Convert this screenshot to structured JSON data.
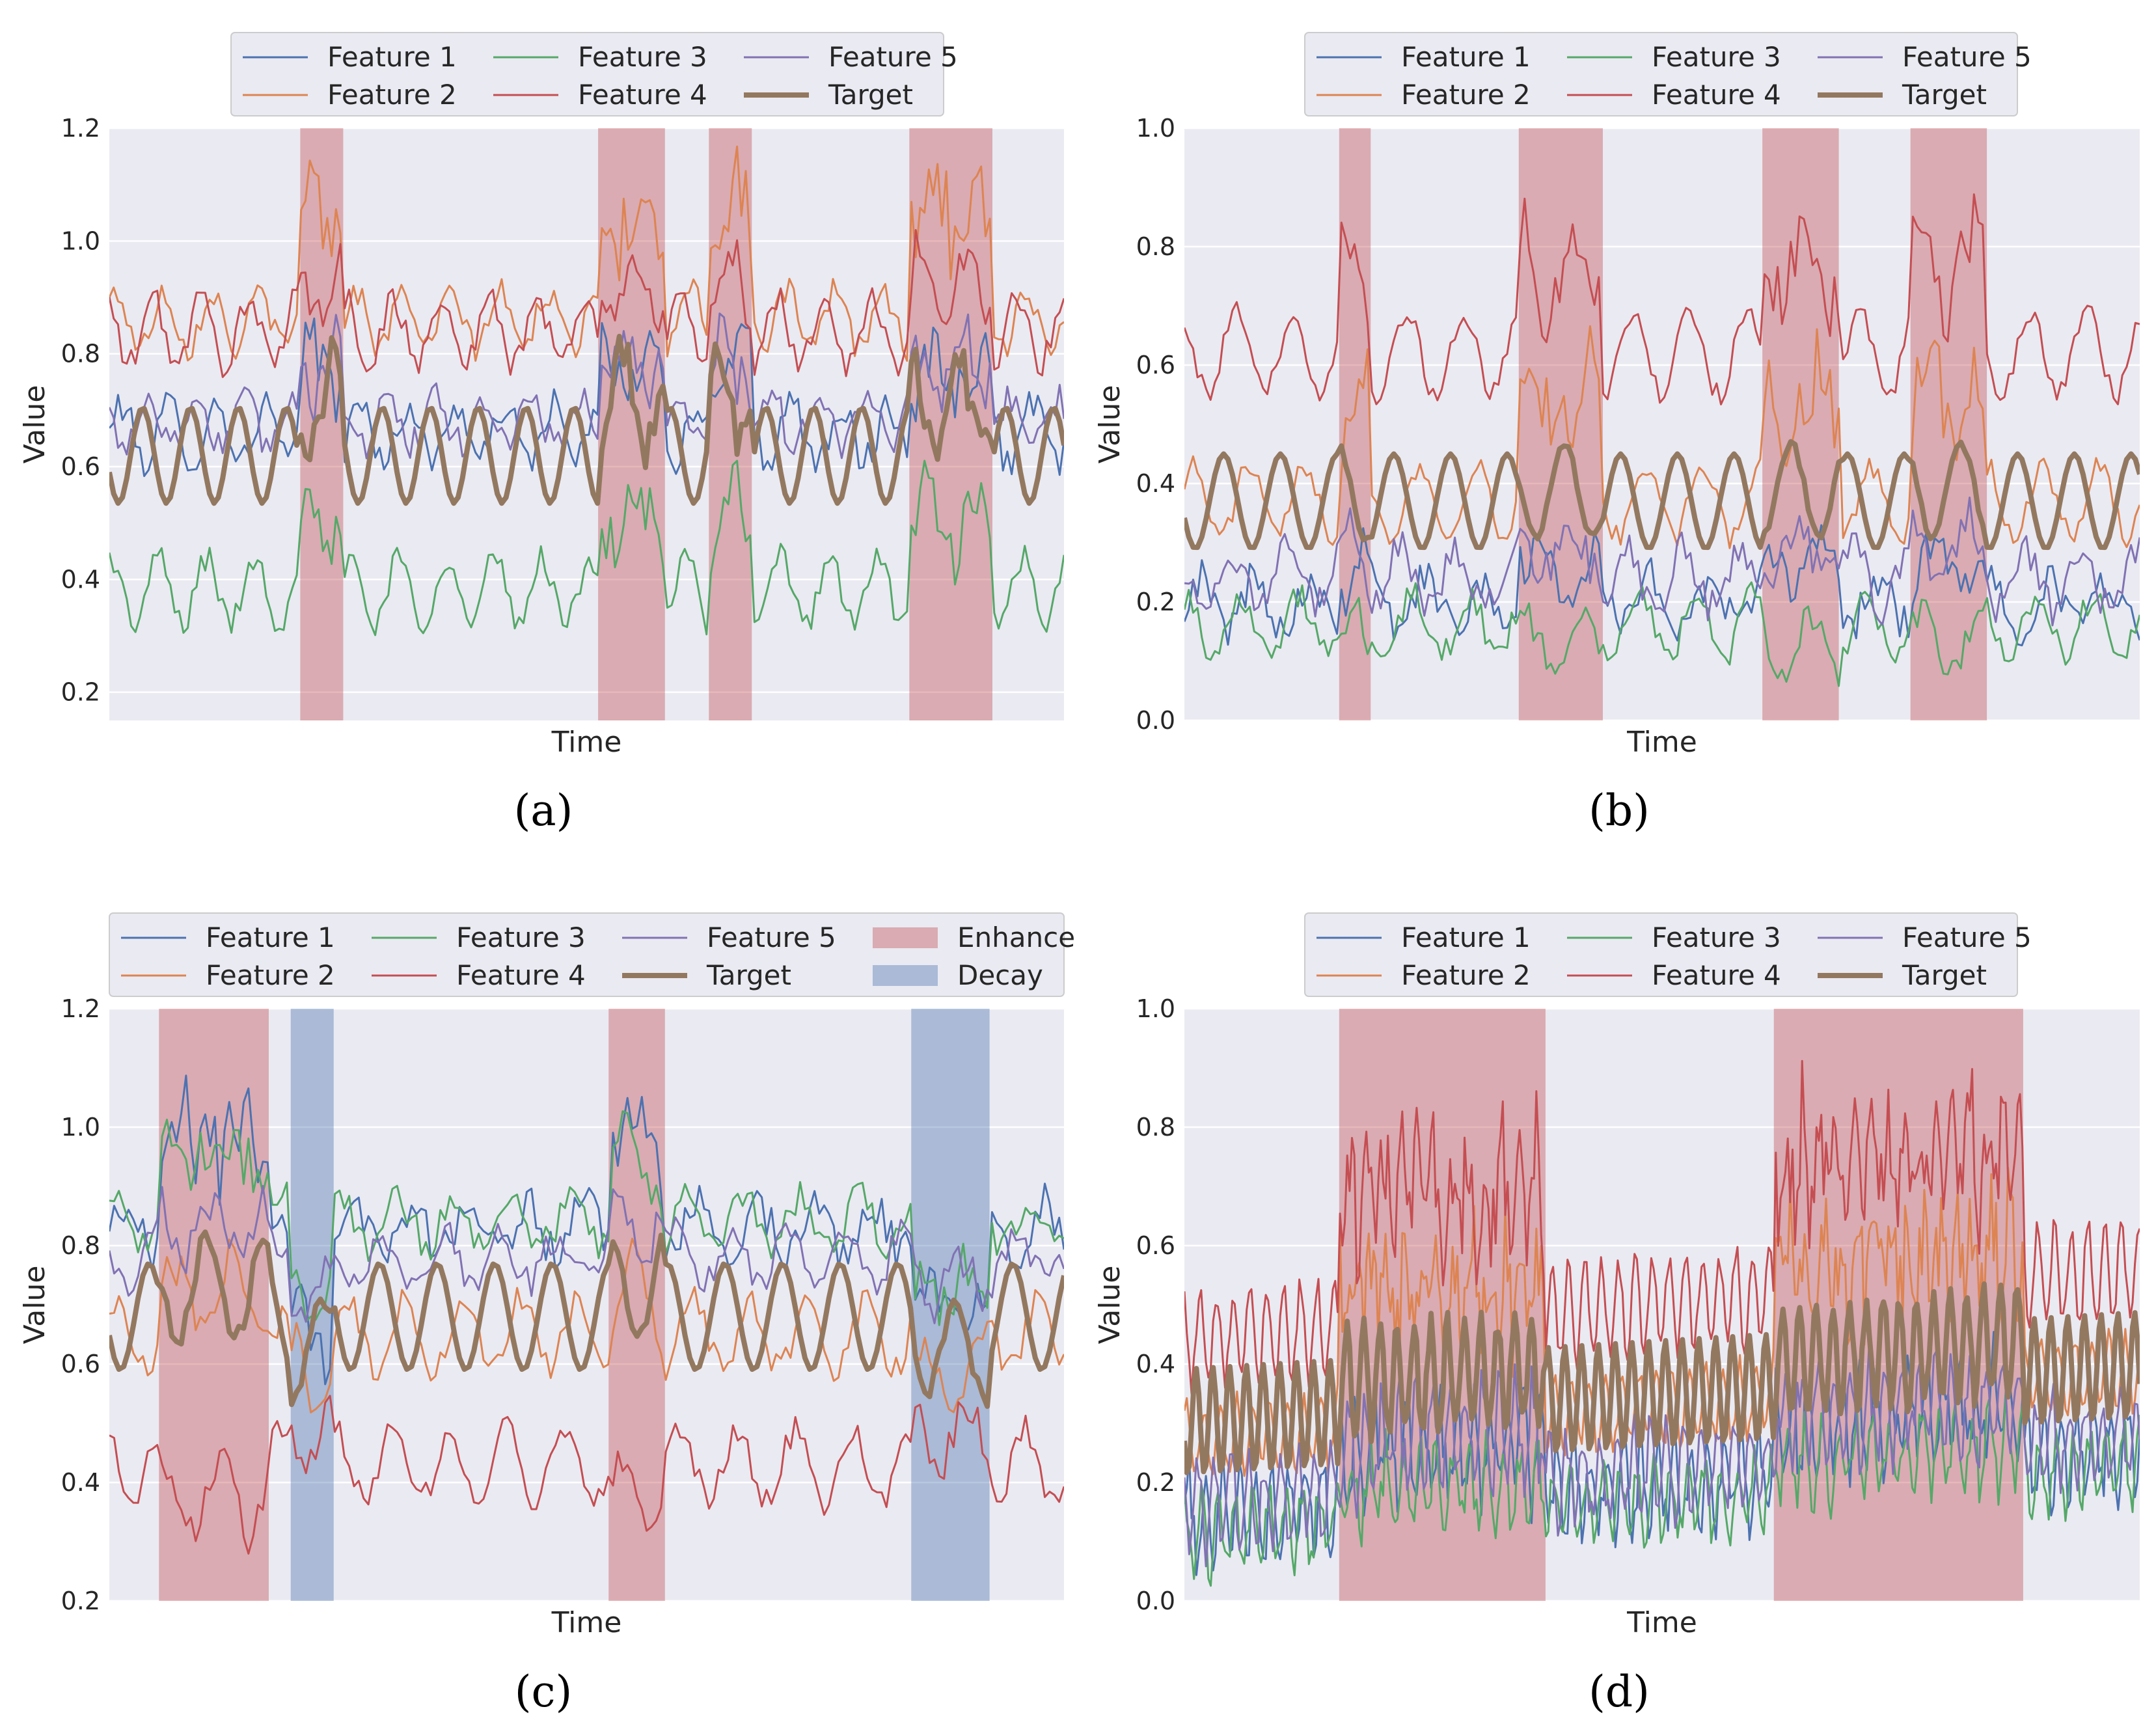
{
  "chart_data": [
    {
      "panel": "(a)",
      "type": "line",
      "caption": "(a)",
      "xlabel": "Time",
      "ylabel": "Value",
      "ylim": [
        0.15,
        1.2
      ],
      "yticks": [
        "0.2",
        "0.4",
        "0.6",
        "0.8",
        "1.0",
        "1.2"
      ],
      "n_points": 220,
      "grid": true,
      "legend_position": "top-center",
      "legend_columns": 3,
      "legend_order": [
        0,
        1,
        2,
        3,
        4,
        5
      ],
      "series": [
        {
          "name": "Feature 1",
          "color": "#4c72b0",
          "base": 0.66,
          "amp": 0.05,
          "period": 11,
          "noise": 0.03,
          "boost": 0.12,
          "width": 3
        },
        {
          "name": "Feature 2",
          "color": "#dd8452",
          "base": 0.86,
          "amp": 0.05,
          "period": 11,
          "noise": 0.025,
          "boost": 0.2,
          "width": 3
        },
        {
          "name": "Feature 3",
          "color": "#55a868",
          "base": 0.38,
          "amp": 0.06,
          "period": 11,
          "noise": 0.025,
          "boost": 0.12,
          "width": 3
        },
        {
          "name": "Feature 4",
          "color": "#c44e52",
          "base": 0.84,
          "amp": 0.06,
          "period": 11,
          "noise": 0.025,
          "boost": 0.08,
          "width": 3
        },
        {
          "name": "Feature 5",
          "color": "#8172b3",
          "base": 0.68,
          "amp": 0.04,
          "period": 11,
          "noise": 0.03,
          "boost": 0.1,
          "width": 3
        },
        {
          "name": "Target",
          "color": "#937860",
          "base": 0.62,
          "amp": 0.085,
          "period": 11,
          "noise": 0.0,
          "boost": 0.1,
          "width": 8
        }
      ],
      "regions": [
        {
          "kind": "Enhance",
          "start": 0.2,
          "end": 0.245
        },
        {
          "kind": "Enhance",
          "start": 0.512,
          "end": 0.582
        },
        {
          "kind": "Enhance",
          "start": 0.628,
          "end": 0.673
        },
        {
          "kind": "Enhance",
          "start": 0.838,
          "end": 0.925
        }
      ]
    },
    {
      "panel": "(b)",
      "type": "line",
      "caption": "(b)",
      "xlabel": "Time",
      "ylabel": "Value",
      "ylim": [
        0.0,
        1.0
      ],
      "yticks": [
        "0.0",
        "0.2",
        "0.4",
        "0.6",
        "0.8",
        "1.0"
      ],
      "n_points": 220,
      "grid": true,
      "legend_position": "top-center",
      "legend_columns": 3,
      "legend_order": [
        0,
        1,
        2,
        3,
        4,
        5
      ],
      "series": [
        {
          "name": "Feature 1",
          "color": "#4c72b0",
          "base": 0.2,
          "amp": 0.04,
          "period": 13,
          "noise": 0.035,
          "boost": 0.06,
          "width": 3
        },
        {
          "name": "Feature 2",
          "color": "#dd8452",
          "base": 0.37,
          "amp": 0.06,
          "period": 13,
          "noise": 0.02,
          "boost": 0.17,
          "width": 3
        },
        {
          "name": "Feature 3",
          "color": "#55a868",
          "base": 0.16,
          "amp": 0.05,
          "period": 13,
          "noise": 0.025,
          "boost": -0.03,
          "width": 3
        },
        {
          "name": "Feature 4",
          "color": "#c44e52",
          "base": 0.62,
          "amp": 0.07,
          "period": 13,
          "noise": 0.02,
          "boost": 0.14,
          "width": 3
        },
        {
          "name": "Feature 5",
          "color": "#8172b3",
          "base": 0.24,
          "amp": 0.05,
          "period": 13,
          "noise": 0.03,
          "boost": 0.05,
          "width": 3
        },
        {
          "name": "Target",
          "color": "#937860",
          "base": 0.37,
          "amp": 0.08,
          "period": 13,
          "noise": 0.0,
          "boost": 0.02,
          "width": 8
        }
      ],
      "regions": [
        {
          "kind": "Enhance",
          "start": 0.162,
          "end": 0.195
        },
        {
          "kind": "Enhance",
          "start": 0.35,
          "end": 0.438
        },
        {
          "kind": "Enhance",
          "start": 0.605,
          "end": 0.685
        },
        {
          "kind": "Enhance",
          "start": 0.76,
          "end": 0.84
        }
      ]
    },
    {
      "panel": "(c)",
      "type": "line",
      "caption": "(c)",
      "xlabel": "Time",
      "ylabel": "Value",
      "ylim": [
        0.2,
        1.2
      ],
      "yticks": [
        "0.2",
        "0.4",
        "0.6",
        "0.8",
        "1.0",
        "1.2"
      ],
      "n_points": 200,
      "grid": true,
      "legend_position": "top-center",
      "legend_columns": 4,
      "legend_order": [
        0,
        1,
        2,
        3,
        4,
        5,
        6,
        7
      ],
      "series": [
        {
          "name": "Feature 1",
          "color": "#4c72b0",
          "base": 0.83,
          "amp": 0.04,
          "period": 12,
          "noise": 0.035,
          "boost": 0.15,
          "width": 3
        },
        {
          "name": "Feature 2",
          "color": "#dd8452",
          "base": 0.65,
          "amp": 0.06,
          "period": 12,
          "noise": 0.025,
          "boost": 0.06,
          "width": 3
        },
        {
          "name": "Feature 3",
          "color": "#55a868",
          "base": 0.84,
          "amp": 0.04,
          "period": 12,
          "noise": 0.03,
          "boost": 0.12,
          "width": 3
        },
        {
          "name": "Feature 4",
          "color": "#c44e52",
          "base": 0.43,
          "amp": 0.06,
          "period": 12,
          "noise": 0.025,
          "boost": -0.05,
          "width": 3
        },
        {
          "name": "Feature 5",
          "color": "#8172b3",
          "base": 0.78,
          "amp": 0.04,
          "period": 12,
          "noise": 0.03,
          "boost": 0.05,
          "width": 3
        },
        {
          "name": "Target",
          "color": "#937860",
          "base": 0.68,
          "amp": 0.09,
          "period": 12,
          "noise": 0.0,
          "boost": 0.05,
          "width": 8
        }
      ],
      "legend_patches": [
        {
          "name": "Enhance",
          "color": "#c44e52"
        },
        {
          "name": "Decay",
          "color": "#4c72b0"
        }
      ],
      "regions": [
        {
          "kind": "Enhance",
          "start": 0.052,
          "end": 0.167
        },
        {
          "kind": "Decay",
          "start": 0.19,
          "end": 0.235
        },
        {
          "kind": "Enhance",
          "start": 0.523,
          "end": 0.582
        },
        {
          "kind": "Decay",
          "start": 0.84,
          "end": 0.922
        }
      ]
    },
    {
      "panel": "(d)",
      "type": "line",
      "caption": "(d)",
      "xlabel": "Time",
      "ylabel": "Value",
      "ylim": [
        0.0,
        1.0
      ],
      "yticks": [
        "0.0",
        "0.2",
        "0.4",
        "0.6",
        "0.8",
        "1.0"
      ],
      "n_points": 400,
      "grid": true,
      "legend_position": "top-center",
      "legend_columns": 3,
      "legend_order": [
        0,
        1,
        2,
        3,
        4,
        5
      ],
      "series": [
        {
          "name": "Feature 1",
          "color": "#4c72b0",
          "base": 0.2,
          "amp": 0.07,
          "period": 7,
          "noise": 0.04,
          "boost": 0.08,
          "width": 3
        },
        {
          "name": "Feature 2",
          "color": "#dd8452",
          "base": 0.33,
          "amp": 0.06,
          "period": 7,
          "noise": 0.02,
          "boost": 0.22,
          "width": 3
        },
        {
          "name": "Feature 3",
          "color": "#55a868",
          "base": 0.17,
          "amp": 0.06,
          "period": 7,
          "noise": 0.03,
          "boost": 0.05,
          "width": 3
        },
        {
          "name": "Feature 4",
          "color": "#c44e52",
          "base": 0.5,
          "amp": 0.08,
          "period": 7,
          "noise": 0.02,
          "boost": 0.22,
          "width": 3
        },
        {
          "name": "Feature 5",
          "color": "#8172b3",
          "base": 0.22,
          "amp": 0.07,
          "period": 7,
          "noise": 0.035,
          "boost": 0.08,
          "width": 3
        },
        {
          "name": "Target",
          "color": "#937860",
          "base": 0.35,
          "amp": 0.09,
          "period": 7,
          "noise": 0.0,
          "boost": 0.05,
          "width": 8
        }
      ],
      "regions": [
        {
          "kind": "Enhance",
          "start": 0.162,
          "end": 0.378
        },
        {
          "kind": "Enhance",
          "start": 0.617,
          "end": 0.878
        }
      ]
    }
  ]
}
